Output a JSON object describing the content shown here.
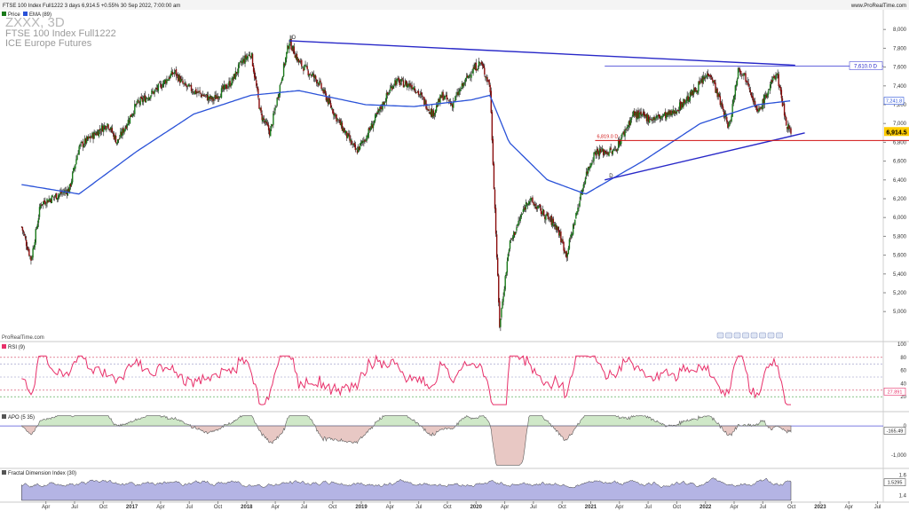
{
  "header": {
    "instrument_line": "FTSE 100 Index Full1222 3 days 6,914.5 +0.55% 30 Sep 2022, 7:00:00 am",
    "site": "www.ProRealTime.com",
    "legend_price": "Price",
    "legend_ema": "EMA (89)"
  },
  "watermark": {
    "symbol": "ZXXX, 3D",
    "name": "FTSE 100 Index Full1222",
    "exchange": "ICE Europe Futures"
  },
  "source_label": "ProRealTime.com",
  "colors": {
    "ema": "#2a52d8",
    "trendline": "#2828c8",
    "support": "#d01010",
    "rsi": "#e8306a",
    "apo_pos": "#cfe8c8",
    "apo_neg": "#e8c8c4",
    "fdi": "#b4b4e4",
    "candle_up": "#1a7a1a",
    "candle_down": "#8a0c0c"
  },
  "chart_data": [
    {
      "type": "line",
      "panel": "price",
      "y_ticks": [
        "8,000",
        "7,800",
        "7,600",
        "7,400",
        "7,200",
        "7,000",
        "6,800",
        "6,600",
        "6,400",
        "6,200",
        "6,000",
        "5,800",
        "5,600",
        "5,400",
        "5,200",
        "5,000"
      ],
      "ylim": [
        4700,
        8200
      ],
      "x_ticks": [
        "Apr",
        "Jul",
        "Oct",
        "2017",
        "Apr",
        "Jul",
        "Oct",
        "2018",
        "Apr",
        "Jul",
        "Oct",
        "2019",
        "Apr",
        "Jul",
        "Oct",
        "2020",
        "Apr",
        "Jul",
        "Oct",
        "2021",
        "Apr",
        "Jul",
        "Oct",
        "2022",
        "Apr",
        "Jul",
        "Oct",
        "2023",
        "Apr",
        "Jul"
      ],
      "price_points": [
        [
          "2016-01",
          5900
        ],
        [
          "2016-02",
          5550
        ],
        [
          "2016-03",
          6150
        ],
        [
          "2016-06",
          6300
        ],
        [
          "2016-07",
          6750
        ],
        [
          "2016-10",
          7000
        ],
        [
          "2016-11",
          6800
        ],
        [
          "2017-01",
          7200
        ],
        [
          "2017-03",
          7350
        ],
        [
          "2017-05",
          7550
        ],
        [
          "2017-06",
          7400
        ],
        [
          "2017-09",
          7250
        ],
        [
          "2017-11",
          7450
        ],
        [
          "2017-12",
          7650
        ],
        [
          "2018-01",
          7750
        ],
        [
          "2018-02",
          7100
        ],
        [
          "2018-03",
          6900
        ],
        [
          "2018-05",
          7880
        ],
        [
          "2018-06",
          7650
        ],
        [
          "2018-08",
          7450
        ],
        [
          "2018-10",
          7050
        ],
        [
          "2018-12",
          6700
        ],
        [
          "2019-01",
          6850
        ],
        [
          "2019-04",
          7450
        ],
        [
          "2019-06",
          7400
        ],
        [
          "2019-08",
          7100
        ],
        [
          "2019-09",
          7300
        ],
        [
          "2019-10",
          7200
        ],
        [
          "2019-12",
          7550
        ],
        [
          "2020-01",
          7650
        ],
        [
          "2020-02",
          7400
        ],
        [
          "2020-03",
          4850
        ],
        [
          "2020-04",
          5700
        ],
        [
          "2020-06",
          6200
        ],
        [
          "2020-09",
          5900
        ],
        [
          "2020-10",
          5600
        ],
        [
          "2020-12",
          6450
        ],
        [
          "2021-01",
          6700
        ],
        [
          "2021-03",
          6700
        ],
        [
          "2021-05",
          7100
        ],
        [
          "2021-07",
          7050
        ],
        [
          "2021-09",
          7100
        ],
        [
          "2021-11",
          7300
        ],
        [
          "2022-01",
          7550
        ],
        [
          "2022-03",
          6950
        ],
        [
          "2022-04",
          7600
        ],
        [
          "2022-05",
          7450
        ],
        [
          "2022-06",
          7100
        ],
        [
          "2022-08",
          7550
        ],
        [
          "2022-09",
          7000
        ],
        [
          "2022-09-30",
          6914.5
        ]
      ],
      "ema89_points": [
        [
          "2016-01",
          6350
        ],
        [
          "2016-07",
          6250
        ],
        [
          "2017-01",
          6700
        ],
        [
          "2017-07",
          7100
        ],
        [
          "2018-01",
          7300
        ],
        [
          "2018-06",
          7350
        ],
        [
          "2019-01",
          7200
        ],
        [
          "2019-06",
          7180
        ],
        [
          "2019-12",
          7250
        ],
        [
          "2020-02",
          7300
        ],
        [
          "2020-04",
          6800
        ],
        [
          "2020-08",
          6400
        ],
        [
          "2020-12",
          6250
        ],
        [
          "2021-06",
          6600
        ],
        [
          "2021-12",
          7000
        ],
        [
          "2022-06",
          7200
        ],
        [
          "2022-09-30",
          7241.8
        ]
      ],
      "labels": {
        "current_price": "6,914.5",
        "ema_value": "7,241.8",
        "resistance_value": "7,610.0 D",
        "support_value": "6,819.0",
        "marker_high": "D",
        "marker_low": "D",
        "support_tag": "6,819.0 D"
      },
      "horizontal_levels": {
        "resistance": 7610.0,
        "support": 6819.0
      },
      "trendlines": [
        {
          "from": [
            "2018-05",
            7880
          ],
          "to": [
            "2022-09",
            7610
          ]
        },
        {
          "from": [
            "2021-02",
            6400
          ],
          "to": [
            "2022-10",
            6890
          ]
        }
      ]
    },
    {
      "type": "line",
      "panel": "indicator",
      "name": "RSI (9)",
      "y_ticks": [
        "100",
        "80",
        "60",
        "40",
        "20"
      ],
      "ylim": [
        0,
        100
      ],
      "levels": [
        80,
        70,
        50,
        30,
        20
      ],
      "current_value": "27.891"
    },
    {
      "type": "area",
      "panel": "indicator",
      "name": "APO (5 35)",
      "y_ticks": [
        "0",
        "-1,000"
      ],
      "ylim": [
        -1400,
        400
      ],
      "current_value": "-165.49"
    },
    {
      "type": "area",
      "panel": "indicator",
      "name": "Fractal Dimension Index (30)",
      "y_ticks": [
        "1.6",
        "1.4"
      ],
      "ylim": [
        1.35,
        1.65
      ],
      "current_value": "1.5295"
    }
  ]
}
